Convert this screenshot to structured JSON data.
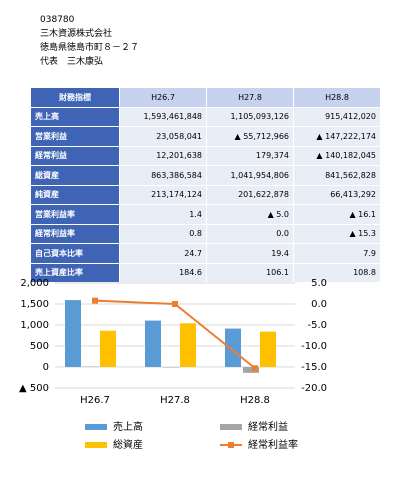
{
  "header": {
    "code": "038780",
    "company": "三木資源株式会社",
    "address": "徳島県徳島市町８－２７",
    "representative": "代表　三木康弘"
  },
  "table": {
    "columns": [
      "財務指標",
      "H26.7",
      "H27.8",
      "H28.8"
    ],
    "rows": [
      [
        "売上高",
        "1,593,461,848",
        "1,105,093,126",
        "915,412,020"
      ],
      [
        "営業利益",
        "23,058,041",
        "▲ 55,712,966",
        "▲ 147,222,174"
      ],
      [
        "経常利益",
        "12,201,638",
        "179,374",
        "▲ 140,182,045"
      ],
      [
        "総資産",
        "863,386,584",
        "1,041,954,806",
        "841,562,828"
      ],
      [
        "純資産",
        "213,174,124",
        "201,622,878",
        "66,413,292"
      ],
      [
        "営業利益率",
        "1.4",
        "▲ 5.0",
        "▲ 16.1"
      ],
      [
        "経常利益率",
        "0.8",
        "0.0",
        "▲ 15.3"
      ],
      [
        "自己資本比率",
        "24.7",
        "19.4",
        "7.9"
      ],
      [
        "売上資産比率",
        "184.6",
        "106.1",
        "108.8"
      ]
    ]
  },
  "chart_data": {
    "type": "bar",
    "categories": [
      "H26.7",
      "H27.8",
      "H28.8"
    ],
    "series": [
      {
        "name": "売上高",
        "color": "#5b9bd5",
        "values": [
          1593,
          1105,
          915
        ]
      },
      {
        "name": "経常利益",
        "color": "#a5a5a5",
        "values": [
          12,
          0.2,
          -140
        ]
      },
      {
        "name": "総資産",
        "color": "#ffc000",
        "values": [
          863,
          1042,
          842
        ]
      },
      {
        "name": "経常利益率",
        "color": "#ed7d31",
        "type": "line",
        "axis": "y2",
        "values": [
          0.8,
          0.0,
          -15.3
        ]
      }
    ],
    "ylim": [
      -500,
      2000
    ],
    "yticks": [
      {
        "value": 2000,
        "label": "2,000"
      },
      {
        "value": 1500,
        "label": "1,500"
      },
      {
        "value": 1000,
        "label": "1,000"
      },
      500,
      0,
      {
        "value": -500,
        "label": "▲ 500"
      }
    ],
    "y2lim": [
      -20,
      5
    ],
    "y2ticks": [
      {
        "value": 5,
        "label": "5.0"
      },
      {
        "value": 0,
        "label": "0.0"
      },
      {
        "value": -5,
        "label": "-5.0"
      },
      {
        "value": -10,
        "label": "-10.0"
      },
      {
        "value": -15,
        "label": "-15.0"
      },
      {
        "value": -20,
        "label": "-20.0"
      }
    ],
    "grid": true
  }
}
